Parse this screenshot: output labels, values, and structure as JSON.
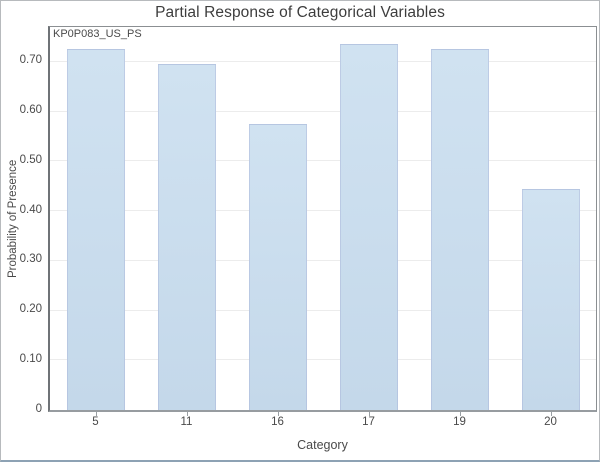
{
  "chart_data": {
    "type": "bar",
    "title": "Partial Response of Categorical Variables",
    "annotation": "KP0P083_US_PS",
    "xlabel": "Category",
    "ylabel": "Probability of Presence",
    "categories": [
      "5",
      "11",
      "16",
      "17",
      "19",
      "20"
    ],
    "values": [
      0.725,
      0.695,
      0.575,
      0.735,
      0.725,
      0.445
    ],
    "ylim": [
      0,
      0.77
    ],
    "grid": true,
    "legend": "none",
    "yticks": [
      {
        "value": 0.0,
        "label": "0"
      },
      {
        "value": 0.1,
        "label": "0.10"
      },
      {
        "value": 0.2,
        "label": "0.20"
      },
      {
        "value": 0.3,
        "label": "0.30"
      },
      {
        "value": 0.4,
        "label": "0.40"
      },
      {
        "value": 0.5,
        "label": "0.50"
      },
      {
        "value": 0.6,
        "label": "0.60"
      },
      {
        "value": 0.7,
        "label": "0.70"
      }
    ],
    "colors": {
      "bar_top": "#d0e2f1",
      "bar_bottom": "#c4d8ea",
      "gridline": "#ececec",
      "axis": "#6f7377",
      "text": "#4a4a4a",
      "title_text": "#3d3d3d",
      "window_bottom_border": "#8da2b4"
    }
  }
}
